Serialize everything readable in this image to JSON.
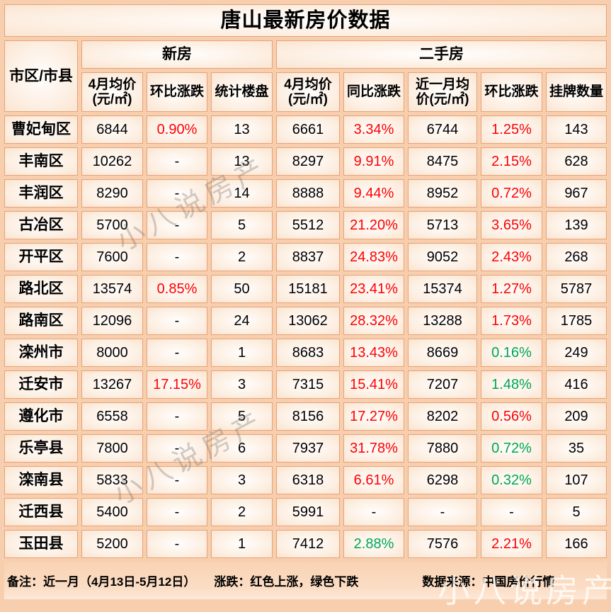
{
  "chart_data": {
    "type": "table",
    "title": "唐山最新房价数据",
    "region_header": "市区/市县",
    "column_groups": [
      {
        "label": "新房",
        "span": 3
      },
      {
        "label": "二手房",
        "span": 5
      }
    ],
    "columns": [
      {
        "l1": "4月均价",
        "l2": "(元/㎡)"
      },
      {
        "l1": "环比涨跌",
        "l2": ""
      },
      {
        "l1": "统计楼盘",
        "l2": ""
      },
      {
        "l1": "4月均价",
        "l2": "(元/㎡)"
      },
      {
        "l1": "同比涨跌",
        "l2": ""
      },
      {
        "l1": "近一月均",
        "l2": "价(元/㎡)"
      },
      {
        "l1": "环比涨跌",
        "l2": ""
      },
      {
        "l1": "挂牌数量",
        "l2": ""
      }
    ],
    "colors": {
      "up": "#ff0000",
      "down": "#00a651"
    },
    "rows": [
      {
        "region": "曹妃甸区",
        "cells": [
          {
            "t": "6844"
          },
          {
            "t": "0.90%",
            "c": "up"
          },
          {
            "t": "13"
          },
          {
            "t": "6661"
          },
          {
            "t": "3.34%",
            "c": "up"
          },
          {
            "t": "6744"
          },
          {
            "t": "1.25%",
            "c": "up"
          },
          {
            "t": "143"
          }
        ]
      },
      {
        "region": "丰南区",
        "cells": [
          {
            "t": "10262"
          },
          {
            "t": "-"
          },
          {
            "t": "13"
          },
          {
            "t": "8297"
          },
          {
            "t": "9.91%",
            "c": "up"
          },
          {
            "t": "8475"
          },
          {
            "t": "2.15%",
            "c": "up"
          },
          {
            "t": "628"
          }
        ]
      },
      {
        "region": "丰润区",
        "cells": [
          {
            "t": "8290"
          },
          {
            "t": "-"
          },
          {
            "t": "14"
          },
          {
            "t": "8888"
          },
          {
            "t": "9.44%",
            "c": "up"
          },
          {
            "t": "8952"
          },
          {
            "t": "0.72%",
            "c": "up"
          },
          {
            "t": "967"
          }
        ]
      },
      {
        "region": "古冶区",
        "cells": [
          {
            "t": "5700"
          },
          {
            "t": "-"
          },
          {
            "t": "5"
          },
          {
            "t": "5512"
          },
          {
            "t": "21.20%",
            "c": "up"
          },
          {
            "t": "5713"
          },
          {
            "t": "3.65%",
            "c": "up"
          },
          {
            "t": "139"
          }
        ]
      },
      {
        "region": "开平区",
        "cells": [
          {
            "t": "7600"
          },
          {
            "t": "-"
          },
          {
            "t": "2"
          },
          {
            "t": "8837"
          },
          {
            "t": "24.83%",
            "c": "up"
          },
          {
            "t": "9052"
          },
          {
            "t": "2.43%",
            "c": "up"
          },
          {
            "t": "268"
          }
        ]
      },
      {
        "region": "路北区",
        "cells": [
          {
            "t": "13574"
          },
          {
            "t": "0.85%",
            "c": "up"
          },
          {
            "t": "50"
          },
          {
            "t": "15181"
          },
          {
            "t": "23.41%",
            "c": "up"
          },
          {
            "t": "15374"
          },
          {
            "t": "1.27%",
            "c": "up"
          },
          {
            "t": "5787"
          }
        ]
      },
      {
        "region": "路南区",
        "cells": [
          {
            "t": "12096"
          },
          {
            "t": "-"
          },
          {
            "t": "24"
          },
          {
            "t": "13062"
          },
          {
            "t": "28.32%",
            "c": "up"
          },
          {
            "t": "13288"
          },
          {
            "t": "1.73%",
            "c": "up"
          },
          {
            "t": "1785"
          }
        ]
      },
      {
        "region": "滦州市",
        "cells": [
          {
            "t": "8000"
          },
          {
            "t": "-"
          },
          {
            "t": "1"
          },
          {
            "t": "8683"
          },
          {
            "t": "13.43%",
            "c": "up"
          },
          {
            "t": "8669"
          },
          {
            "t": "0.16%",
            "c": "down"
          },
          {
            "t": "249"
          }
        ]
      },
      {
        "region": "迁安市",
        "cells": [
          {
            "t": "13267"
          },
          {
            "t": "17.15%",
            "c": "up"
          },
          {
            "t": "3"
          },
          {
            "t": "7315"
          },
          {
            "t": "15.41%",
            "c": "up"
          },
          {
            "t": "7207"
          },
          {
            "t": "1.48%",
            "c": "down"
          },
          {
            "t": "416"
          }
        ]
      },
      {
        "region": "遵化市",
        "cells": [
          {
            "t": "6558"
          },
          {
            "t": "-"
          },
          {
            "t": "5"
          },
          {
            "t": "8156"
          },
          {
            "t": "17.27%",
            "c": "up"
          },
          {
            "t": "8202"
          },
          {
            "t": "0.56%",
            "c": "up"
          },
          {
            "t": "209"
          }
        ]
      },
      {
        "region": "乐亭县",
        "cells": [
          {
            "t": "7800"
          },
          {
            "t": "-"
          },
          {
            "t": "6"
          },
          {
            "t": "7937"
          },
          {
            "t": "31.78%",
            "c": "up"
          },
          {
            "t": "7880"
          },
          {
            "t": "0.72%",
            "c": "down"
          },
          {
            "t": "35"
          }
        ]
      },
      {
        "region": "滦南县",
        "cells": [
          {
            "t": "5833"
          },
          {
            "t": "-"
          },
          {
            "t": "3"
          },
          {
            "t": "6318"
          },
          {
            "t": "6.61%",
            "c": "up"
          },
          {
            "t": "6298"
          },
          {
            "t": "0.32%",
            "c": "down"
          },
          {
            "t": "107"
          }
        ]
      },
      {
        "region": "迁西县",
        "cells": [
          {
            "t": "5400"
          },
          {
            "t": "-"
          },
          {
            "t": "2"
          },
          {
            "t": "5991"
          },
          {
            "t": "-"
          },
          {
            "t": "-"
          },
          {
            "t": "-"
          },
          {
            "t": "5"
          }
        ]
      },
      {
        "region": "玉田县",
        "cells": [
          {
            "t": "5200"
          },
          {
            "t": "-"
          },
          {
            "t": "1"
          },
          {
            "t": "7412"
          },
          {
            "t": "2.88%",
            "c": "down"
          },
          {
            "t": "7576"
          },
          {
            "t": "2.21%",
            "c": "up"
          },
          {
            "t": "166"
          }
        ]
      }
    ]
  },
  "footer": {
    "note": "备注：近一月（4月13日-5月12日）",
    "legend": "涨跌：红色上涨，绿色下跌",
    "source": "数据来源：中国房价行情"
  },
  "watermark": {
    "text": "小八说房产"
  }
}
